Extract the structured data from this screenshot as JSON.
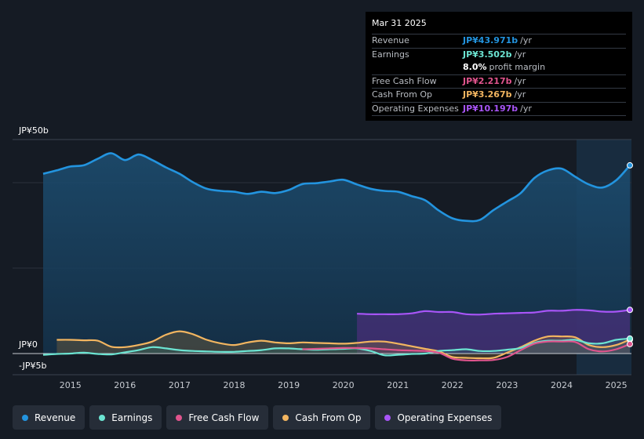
{
  "tooltip": {
    "date": "Mar 31 2025",
    "rows": [
      {
        "label": "Revenue",
        "value": "JP¥43.971b",
        "unit": "/yr",
        "color": "#2394df"
      },
      {
        "label": "Earnings",
        "value": "JP¥3.502b",
        "unit": "/yr",
        "color": "#6ce4d2"
      },
      {
        "label": "",
        "value": "8.0%",
        "unit": "profit margin",
        "color": "#ffffff"
      },
      {
        "label": "Free Cash Flow",
        "value": "JP¥2.217b",
        "unit": "/yr",
        "color": "#e0548d"
      },
      {
        "label": "Cash From Op",
        "value": "JP¥3.267b",
        "unit": "/yr",
        "color": "#f2b560"
      },
      {
        "label": "Operating Expenses",
        "value": "JP¥10.197b",
        "unit": "/yr",
        "color": "#a855f7"
      }
    ]
  },
  "legend": [
    {
      "label": "Revenue",
      "color": "#2394df",
      "icon": "revenue-dot-icon"
    },
    {
      "label": "Earnings",
      "color": "#6ce4d2",
      "icon": "earnings-dot-icon"
    },
    {
      "label": "Free Cash Flow",
      "color": "#e0548d",
      "icon": "free-cash-flow-dot-icon"
    },
    {
      "label": "Cash From Op",
      "color": "#f2b560",
      "icon": "cash-from-op-dot-icon"
    },
    {
      "label": "Operating Expenses",
      "color": "#a855f7",
      "icon": "operating-expenses-dot-icon"
    }
  ],
  "chart_data": {
    "type": "area",
    "title": "",
    "xlabel": "",
    "ylabel": "",
    "y_unit": "JP¥ billions",
    "ylim": [
      -5,
      50
    ],
    "xlim": [
      2014.4,
      2025.25
    ],
    "y_tick_labels": [
      {
        "value": 50,
        "label": "JP¥50b"
      },
      {
        "value": 0,
        "label": "JP¥0"
      },
      {
        "value": -5,
        "label": "-JP¥5b"
      }
    ],
    "x_ticks": [
      2015,
      2016,
      2017,
      2018,
      2019,
      2020,
      2021,
      2022,
      2023,
      2024,
      2025
    ],
    "x_tick_labels": [
      "2015",
      "2016",
      "2017",
      "2018",
      "2019",
      "2020",
      "2021",
      "2022",
      "2023",
      "2024",
      "2025"
    ],
    "forecast_start": 2024.25,
    "series": [
      {
        "name": "Revenue",
        "color": "#2394df",
        "fill": true,
        "x": [
          2014.5,
          2014.75,
          2015.0,
          2015.25,
          2015.5,
          2015.75,
          2016.0,
          2016.25,
          2016.5,
          2016.75,
          2017.0,
          2017.25,
          2017.5,
          2017.75,
          2018.0,
          2018.25,
          2018.5,
          2018.75,
          2019.0,
          2019.25,
          2019.5,
          2019.75,
          2020.0,
          2020.25,
          2020.5,
          2020.75,
          2021.0,
          2021.25,
          2021.5,
          2021.75,
          2022.0,
          2022.25,
          2022.5,
          2022.75,
          2023.0,
          2023.25,
          2023.5,
          2023.75,
          2024.0,
          2024.25,
          2024.5,
          2024.75,
          2025.0,
          2025.25
        ],
        "values": [
          42.0,
          42.8,
          43.7,
          44.0,
          45.5,
          46.8,
          45.2,
          46.5,
          45.2,
          43.5,
          42.0,
          40.0,
          38.5,
          38.0,
          37.8,
          37.3,
          37.8,
          37.5,
          38.2,
          39.6,
          39.8,
          40.2,
          40.6,
          39.5,
          38.5,
          38.0,
          37.8,
          36.8,
          35.8,
          33.4,
          31.6,
          31.0,
          31.2,
          33.5,
          35.5,
          37.5,
          41.0,
          42.8,
          43.2,
          41.3,
          39.5,
          38.8,
          40.5,
          43.971
        ]
      },
      {
        "name": "Operating Expenses",
        "color": "#a855f7",
        "fill": true,
        "x": [
          2020.25,
          2020.5,
          2020.75,
          2021.0,
          2021.25,
          2021.5,
          2021.75,
          2022.0,
          2022.25,
          2022.5,
          2022.75,
          2023.0,
          2023.25,
          2023.5,
          2023.75,
          2024.0,
          2024.25,
          2024.5,
          2024.75,
          2025.0,
          2025.25
        ],
        "values": [
          9.3,
          9.2,
          9.2,
          9.2,
          9.4,
          9.9,
          9.7,
          9.7,
          9.2,
          9.1,
          9.3,
          9.4,
          9.5,
          9.6,
          10.0,
          10.0,
          10.2,
          10.1,
          9.8,
          9.8,
          10.197
        ]
      },
      {
        "name": "Cash From Op",
        "color": "#f2b560",
        "fill": true,
        "x": [
          2014.75,
          2015.0,
          2015.25,
          2015.5,
          2015.75,
          2016.0,
          2016.25,
          2016.5,
          2016.75,
          2017.0,
          2017.25,
          2017.5,
          2017.75,
          2018.0,
          2018.25,
          2018.5,
          2018.75,
          2019.0,
          2019.25,
          2019.5,
          2019.75,
          2020.0,
          2020.25,
          2020.5,
          2020.75,
          2021.0,
          2021.25,
          2021.5,
          2021.75,
          2022.0,
          2022.25,
          2022.5,
          2022.75,
          2023.0,
          2023.25,
          2023.5,
          2023.75,
          2024.0,
          2024.25,
          2024.5,
          2024.75,
          2025.0,
          2025.25
        ],
        "values": [
          3.2,
          3.2,
          3.1,
          3.0,
          1.6,
          1.5,
          2.0,
          2.8,
          4.4,
          5.2,
          4.5,
          3.2,
          2.4,
          2.0,
          2.6,
          3.0,
          2.6,
          2.4,
          2.6,
          2.5,
          2.4,
          2.3,
          2.5,
          2.8,
          2.8,
          2.3,
          1.7,
          1.1,
          0.5,
          -0.8,
          -1.0,
          -1.1,
          -1.0,
          0.2,
          1.5,
          3.0,
          4.0,
          4.0,
          3.8,
          2.0,
          1.5,
          2.0,
          3.267
        ]
      },
      {
        "name": "Earnings",
        "color": "#6ce4d2",
        "fill": true,
        "x": [
          2014.5,
          2014.75,
          2015.0,
          2015.25,
          2015.5,
          2015.75,
          2016.0,
          2016.25,
          2016.5,
          2016.75,
          2017.0,
          2017.25,
          2017.5,
          2017.75,
          2018.0,
          2018.25,
          2018.5,
          2018.75,
          2019.0,
          2019.25,
          2019.5,
          2019.75,
          2020.0,
          2020.25,
          2020.5,
          2020.75,
          2021.0,
          2021.25,
          2021.5,
          2021.75,
          2022.0,
          2022.25,
          2022.5,
          2022.75,
          2023.0,
          2023.25,
          2023.5,
          2023.75,
          2024.0,
          2024.25,
          2024.5,
          2024.75,
          2025.0,
          2025.25
        ],
        "values": [
          -0.3,
          -0.1,
          0.0,
          0.2,
          -0.1,
          -0.2,
          0.3,
          0.8,
          1.5,
          1.2,
          0.8,
          0.6,
          0.5,
          0.4,
          0.4,
          0.6,
          0.8,
          1.2,
          1.2,
          1.0,
          0.9,
          1.0,
          1.1,
          1.2,
          0.6,
          -0.4,
          -0.3,
          -0.1,
          0.0,
          0.6,
          0.8,
          1.0,
          0.6,
          0.6,
          0.9,
          1.3,
          2.5,
          3.0,
          3.0,
          3.2,
          2.4,
          2.4,
          3.2,
          3.502
        ]
      },
      {
        "name": "Free Cash Flow",
        "color": "#e0548d",
        "fill": false,
        "x": [
          2019.25,
          2019.5,
          2019.75,
          2020.0,
          2020.25,
          2020.5,
          2020.75,
          2021.0,
          2021.25,
          2021.5,
          2021.75,
          2022.0,
          2022.25,
          2022.5,
          2022.75,
          2023.0,
          2023.25,
          2023.5,
          2023.75,
          2024.0,
          2024.25,
          2024.5,
          2024.75,
          2025.0,
          2025.25
        ],
        "values": [
          1.0,
          1.1,
          1.2,
          1.3,
          1.3,
          1.2,
          1.0,
          0.8,
          0.7,
          0.6,
          0.2,
          -1.2,
          -1.6,
          -1.6,
          -1.5,
          -0.8,
          0.8,
          2.3,
          2.8,
          2.8,
          2.7,
          1.0,
          0.5,
          1.0,
          2.217
        ]
      }
    ]
  }
}
